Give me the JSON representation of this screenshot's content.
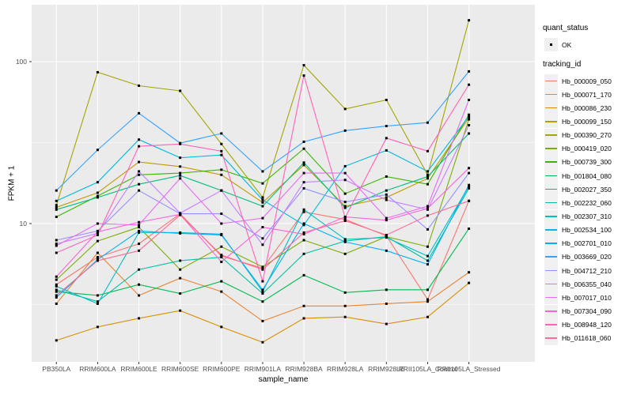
{
  "colors": {
    "background": "#FFFFFF",
    "panel_bg": "#EBEBEB",
    "grid_major": "#FFFFFF",
    "grid_minor": "#F7F7F7",
    "axis_text": "#4D4D4D",
    "tick_mark": "#333333",
    "point": "#000000",
    "legend_key_bg": "#F0F0F0"
  },
  "chart_data": {
    "type": "line",
    "title": "",
    "xlabel": "sample_name",
    "ylabel": "FPKM + 1",
    "y_scale": "log10",
    "y_ticks": [
      "10",
      "100"
    ],
    "y_minor_gridlines": [
      3.162,
      31.62
    ],
    "ylim": [
      1.7,
      230
    ],
    "grid": "on",
    "legend_position": "right",
    "point_shape": "small black square",
    "categories": [
      "PB350LA",
      "RRIM600LA",
      "RRIM600LE",
      "RRIM600SE",
      "RRIM600PE",
      "RRIM901LA",
      "RRIM928BA",
      "RRIM928LA",
      "RRIM928LE",
      "RRII105LA_Control",
      "RRII105LA_Stressed"
    ],
    "quant_legend": {
      "title": "quant_status",
      "items": [
        {
          "label": "OK",
          "glyph": "black-point"
        }
      ]
    },
    "series_legend_title": "tracking_id",
    "series": [
      {
        "name": "Hb_000009_050",
        "color": "#F8766D",
        "values": [
          4.2,
          6.2,
          7.5,
          11.5,
          6.3,
          5.3,
          11.8,
          10.6,
          8.4,
          3.4,
          13.8
        ]
      },
      {
        "name": "Hb_000071_170",
        "color": "#EA8331",
        "values": [
          3.2,
          6.6,
          3.6,
          4.6,
          3.8,
          2.5,
          3.1,
          3.1,
          3.2,
          3.3,
          5.0
        ]
      },
      {
        "name": "Hb_000086_230",
        "color": "#D89000",
        "values": [
          1.9,
          2.3,
          2.6,
          2.9,
          2.3,
          1.85,
          2.6,
          2.65,
          2.4,
          2.65,
          4.3
        ]
      },
      {
        "name": "Hb_000099_150",
        "color": "#C09B00",
        "values": [
          12.6,
          15.5,
          24,
          22.5,
          20,
          13.5,
          23,
          12.8,
          14.5,
          19,
          45
        ]
      },
      {
        "name": "Hb_000390_270",
        "color": "#A3A500",
        "values": [
          13,
          86,
          71,
          66,
          31,
          14.5,
          95,
          51,
          58,
          20,
          180
        ]
      },
      {
        "name": "Hb_000419_020",
        "color": "#7CAE00",
        "values": [
          4.5,
          7.8,
          9.5,
          5.2,
          7.2,
          5.4,
          7.9,
          6.5,
          8.3,
          7.2,
          44
        ]
      },
      {
        "name": "Hb_000739_300",
        "color": "#39B600",
        "values": [
          11,
          14.8,
          20,
          20.5,
          21.5,
          17.7,
          29,
          15.3,
          19.5,
          17.5,
          47
        ]
      },
      {
        "name": "Hb_001804_080",
        "color": "#00BB4E",
        "values": [
          3.8,
          3.6,
          4.2,
          3.7,
          4.4,
          3.3,
          4.8,
          3.75,
          3.9,
          3.9,
          9.3
        ]
      },
      {
        "name": "Hb_002027_350",
        "color": "#00BF7D",
        "values": [
          12.2,
          14.5,
          17.5,
          19.8,
          16,
          12.8,
          23.8,
          12.5,
          16,
          19.5,
          36
        ]
      },
      {
        "name": "Hb_002232_060",
        "color": "#00C1A3",
        "values": [
          3.9,
          3.3,
          5.2,
          5.9,
          6.2,
          3.7,
          6.5,
          7.8,
          8.3,
          5.9,
          16.5
        ]
      },
      {
        "name": "Hb_002307_310",
        "color": "#00BFC4",
        "values": [
          4.1,
          3.2,
          8.8,
          8.8,
          8.6,
          3.8,
          12.2,
          8.0,
          8.2,
          6.3,
          17
        ]
      },
      {
        "name": "Hb_002534_100",
        "color": "#00BAE0",
        "values": [
          13.8,
          18,
          33,
          25.5,
          26.5,
          14,
          9.8,
          22.6,
          28.3,
          21,
          46
        ]
      },
      {
        "name": "Hb_002701_010",
        "color": "#00B0F6",
        "values": [
          3.5,
          6.0,
          9.0,
          8.7,
          8.5,
          3.9,
          10,
          7.7,
          6.8,
          5.6,
          17.3
        ]
      },
      {
        "name": "Hb_003669_020",
        "color": "#35A2FF",
        "values": [
          16,
          28.5,
          48,
          31.4,
          36,
          21,
          32,
          37.5,
          40,
          42,
          87
        ]
      },
      {
        "name": "Hb_004712_210",
        "color": "#9590FF",
        "values": [
          7.9,
          9.0,
          16,
          11.5,
          11.5,
          8.1,
          16.5,
          13.6,
          15.1,
          9.2,
          20.5
        ]
      },
      {
        "name": "Hb_006355_040",
        "color": "#C77CFF",
        "values": [
          7.5,
          8.7,
          21,
          11.6,
          16,
          7.4,
          18,
          18.6,
          14,
          12.2,
          40.5
        ]
      },
      {
        "name": "Hb_007017_010",
        "color": "#E76BF3",
        "values": [
          7.3,
          10,
          9.8,
          19,
          10,
          10.8,
          20.5,
          20.5,
          10.8,
          12.8,
          58
        ]
      },
      {
        "name": "Hb_007304_090",
        "color": "#FA62DB",
        "values": [
          4.7,
          8.9,
          10.2,
          11.4,
          5.8,
          9.5,
          8.6,
          11,
          10.5,
          12.4,
          22
        ]
      },
      {
        "name": "Hb_008948_120",
        "color": "#FF62BC",
        "values": [
          6.6,
          8.5,
          30,
          31,
          28,
          4.4,
          82,
          10.9,
          33.7,
          28,
          72
        ]
      },
      {
        "name": "Hb_011618_060",
        "color": "#FF6A98",
        "values": [
          3.6,
          5.9,
          6.8,
          11.3,
          6.4,
          5.2,
          8.8,
          10.4,
          8.5,
          11.2,
          13.8
        ]
      }
    ]
  }
}
